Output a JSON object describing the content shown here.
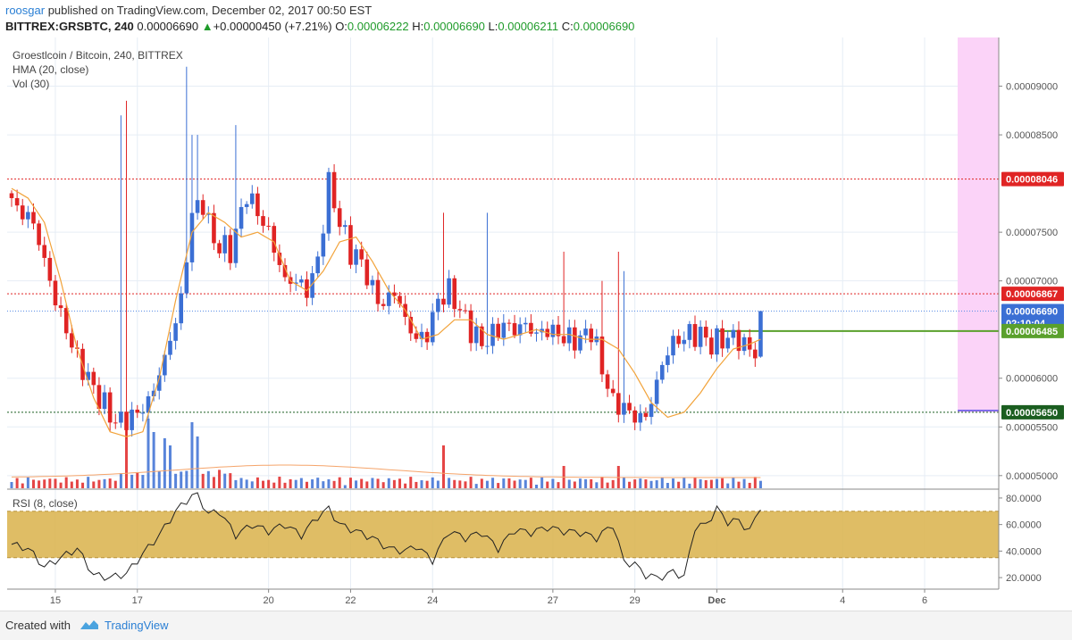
{
  "header": {
    "author": "roosgar",
    "published_text": "published on TradingView.com, December 02, 2017 00:50 EST",
    "symbol": "BITTREX:GRSBTC, 240",
    "last_price": "0.00006690",
    "change_arrow": "▲",
    "change_text": "+0.00000450 (+7.21%)",
    "o_label": "O:",
    "o_value": "0.00006222",
    "h_label": "H:",
    "h_value": "0.00006690",
    "l_label": "L:",
    "l_value": "0.00006211",
    "c_label": "C:",
    "c_value": "0.00006690"
  },
  "legend": {
    "title": "Groestlcoin / Bitcoin, 240, BITTREX",
    "hma": "HMA (20, close)",
    "vol": "Vol (30)",
    "rsi": "RSI (8, close)"
  },
  "footer": {
    "created_with": "Created with",
    "brand": "TradingView"
  },
  "colors": {
    "up": "#3b6fd4",
    "down": "#e02424",
    "hma": "#f2a33a",
    "volume_ma": "#f5a46a",
    "rsi_band": "#d9b24a",
    "red_line": "#e02424",
    "green_line": "#1b5e20",
    "trend_line": "#5aa02c",
    "current_line": "#5b8ee6",
    "forecast_zone": "#fbd3f8"
  },
  "chart_data": [
    {
      "type": "candlestick",
      "title": "Groestlcoin / Bitcoin, 240, BITTREX",
      "y_axis": {
        "range": [
          4.87e-05,
          9.5e-05
        ],
        "ticks": [
          "0.00009000",
          "0.00008500",
          "0.00007500",
          "0.00007000",
          "0.00006000",
          "0.00005500",
          "0.00005000"
        ]
      },
      "x_axis": {
        "ticks": [
          "15",
          "17",
          "20",
          "22",
          "24",
          "27",
          "29",
          "Dec",
          "4",
          "6"
        ],
        "tick_candle_index": [
          8,
          23,
          47,
          62,
          77,
          99,
          114,
          129,
          152,
          167
        ]
      },
      "price_labels": [
        {
          "text": "0.00008046",
          "value": 8.046e-05,
          "color": "#e02424"
        },
        {
          "text": "0.00006867",
          "value": 6.867e-05,
          "color": "#e02424"
        },
        {
          "text": "0.00006690",
          "value": 6.69e-05,
          "color": "#3b6fd4"
        },
        {
          "text": "02:10:04",
          "value": 6.565e-05,
          "color": "#3b6fd4"
        },
        {
          "text": "0.00006485",
          "value": 6.485e-05,
          "color": "#5aa02c"
        },
        {
          "text": "0.00005650",
          "value": 5.65e-05,
          "color": "#1b5e20"
        }
      ],
      "horizontal_lines": [
        {
          "value": 8.046e-05,
          "style": "dotted",
          "color": "#e02424"
        },
        {
          "value": 6.867e-05,
          "style": "dotted",
          "color": "#e02424"
        },
        {
          "value": 5.65e-05,
          "style": "dotted",
          "color": "#1b5e20"
        },
        {
          "value": 6.69e-05,
          "style": "dotted",
          "color": "#5b8ee6"
        }
      ],
      "trend_line": {
        "value": 6.485e-05,
        "from_candle": 129,
        "color": "#5aa02c"
      },
      "anchor_points": {
        "candle_index": [
          0,
          4,
          8,
          12,
          16,
          19,
          22,
          25,
          28,
          31,
          33,
          35,
          37,
          40,
          43,
          47,
          50,
          52,
          54,
          56,
          58,
          60,
          62,
          64,
          66,
          68,
          70,
          72,
          74,
          76,
          78,
          80,
          82,
          84,
          86,
          88,
          90,
          92,
          94,
          96,
          98,
          100,
          102,
          104,
          106,
          108,
          110,
          112,
          114,
          116,
          118,
          120,
          122,
          124,
          126,
          128,
          130,
          132,
          134,
          136,
          137
        ],
        "close": [
          7.8,
          7.6,
          6.8,
          6.2,
          5.8,
          5.55,
          5.6,
          5.75,
          6.2,
          6.8,
          7.7,
          7.8,
          7.4,
          7.3,
          7.9,
          7.5,
          7.0,
          7.0,
          6.9,
          7.2,
          8.0,
          7.6,
          7.3,
          7.2,
          6.9,
          6.75,
          6.9,
          6.6,
          6.4,
          6.45,
          6.8,
          6.9,
          6.7,
          6.5,
          6.35,
          6.45,
          6.55,
          6.5,
          6.55,
          6.45,
          6.5,
          6.45,
          6.4,
          6.4,
          6.5,
          6.1,
          5.75,
          5.7,
          5.6,
          5.6,
          5.95,
          6.3,
          6.4,
          6.45,
          6.45,
          6.35,
          6.4,
          6.42,
          6.35,
          6.25,
          6.69
        ],
        "unit": "1e-5 BTC"
      },
      "hma_anchor_points": {
        "candle_index": [
          0,
          3,
          6,
          9,
          12,
          15,
          18,
          21,
          24,
          27,
          30,
          33,
          36,
          39,
          42,
          45,
          48,
          51,
          54,
          57,
          60,
          63,
          66,
          69,
          72,
          75,
          78,
          81,
          84,
          87,
          90,
          93,
          96,
          99,
          102,
          105,
          108,
          111,
          114,
          117,
          120,
          123,
          126,
          129,
          132,
          135,
          137
        ],
        "value": [
          7.95,
          7.85,
          7.6,
          7.0,
          6.3,
          5.8,
          5.45,
          5.4,
          5.45,
          6.0,
          6.8,
          7.5,
          7.7,
          7.6,
          7.45,
          7.5,
          7.4,
          7.0,
          6.9,
          7.1,
          7.4,
          7.45,
          7.2,
          6.9,
          6.7,
          6.4,
          6.45,
          6.6,
          6.6,
          6.45,
          6.4,
          6.45,
          6.5,
          6.45,
          6.45,
          6.4,
          6.4,
          6.3,
          6.05,
          5.75,
          5.6,
          5.65,
          5.85,
          6.1,
          6.3,
          6.35,
          6.4
        ],
        "unit": "1e-5 BTC"
      },
      "volume": {
        "note": "relative volume bars with spikes around candles 21, 25, 28 and 33"
      }
    },
    {
      "type": "line",
      "title": "RSI (8, close)",
      "y_axis": {
        "range": [
          12,
          86
        ],
        "ticks": [
          "80.0000",
          "60.0000",
          "40.0000",
          "20.0000"
        ]
      },
      "band": [
        35,
        70
      ],
      "series": [
        {
          "name": "RSI (8, close)",
          "candle_index": [
            0,
            3,
            6,
            9,
            12,
            15,
            18,
            21,
            24,
            27,
            30,
            33,
            34,
            36,
            38,
            41,
            44,
            47,
            50,
            53,
            56,
            58,
            60,
            63,
            66,
            69,
            72,
            74,
            77,
            80,
            83,
            86,
            89,
            92,
            95,
            98,
            101,
            104,
            107,
            110,
            112,
            114,
            116,
            118,
            120,
            121,
            123,
            125,
            127,
            129,
            131,
            133,
            135,
            137
          ],
          "values": [
            45,
            42,
            28,
            35,
            42,
            22,
            20,
            23,
            38,
            52,
            70,
            82,
            82,
            68,
            70,
            52,
            60,
            55,
            60,
            52,
            66,
            72,
            60,
            55,
            50,
            42,
            40,
            44,
            33,
            55,
            50,
            54,
            42,
            56,
            54,
            58,
            55,
            54,
            50,
            60,
            32,
            30,
            22,
            20,
            22,
            25,
            20,
            58,
            60,
            72,
            62,
            63,
            55,
            74
          ]
        }
      ]
    }
  ]
}
